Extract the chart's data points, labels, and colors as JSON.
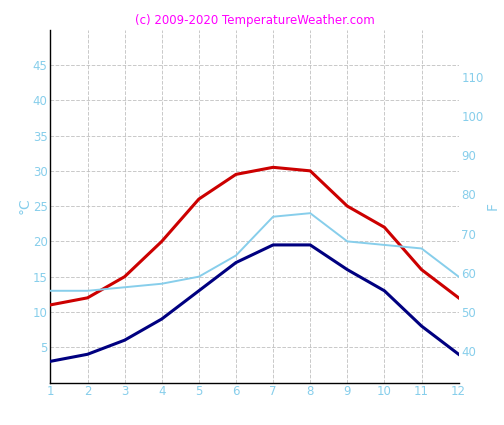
{
  "months": [
    1,
    2,
    3,
    4,
    5,
    6,
    7,
    8,
    9,
    10,
    11,
    12
  ],
  "temp_max_c": [
    11,
    12,
    15,
    20,
    26,
    29.5,
    30.5,
    30,
    25,
    22,
    16,
    12
  ],
  "temp_min_c": [
    3,
    4,
    6,
    9,
    13,
    17,
    19.5,
    19.5,
    16,
    13,
    8,
    4
  ],
  "temp_water_c": [
    13,
    13,
    13.5,
    14,
    15,
    18,
    23.5,
    24,
    20,
    19.5,
    19,
    15
  ],
  "color_max": "#cc0000",
  "color_min": "#000080",
  "color_water": "#87ceeb",
  "title": "(c) 2009-2020 TemperatureWeather.com",
  "title_color": "#ff00ff",
  "ylabel_left": "°C",
  "ylabel_right": "F",
  "ylim_c": [
    0,
    50
  ],
  "ylim_f": [
    32,
    122
  ],
  "yticks_c": [
    5,
    10,
    15,
    20,
    25,
    30,
    35,
    40,
    45
  ],
  "yticks_f": [
    40,
    50,
    60,
    70,
    80,
    90,
    100,
    110
  ],
  "background_color": "#ffffff",
  "grid_color": "#bbbbbb",
  "tick_color": "#87ceeb",
  "label_color": "#87ceeb",
  "linewidth_main": 2.2,
  "linewidth_water": 1.4
}
